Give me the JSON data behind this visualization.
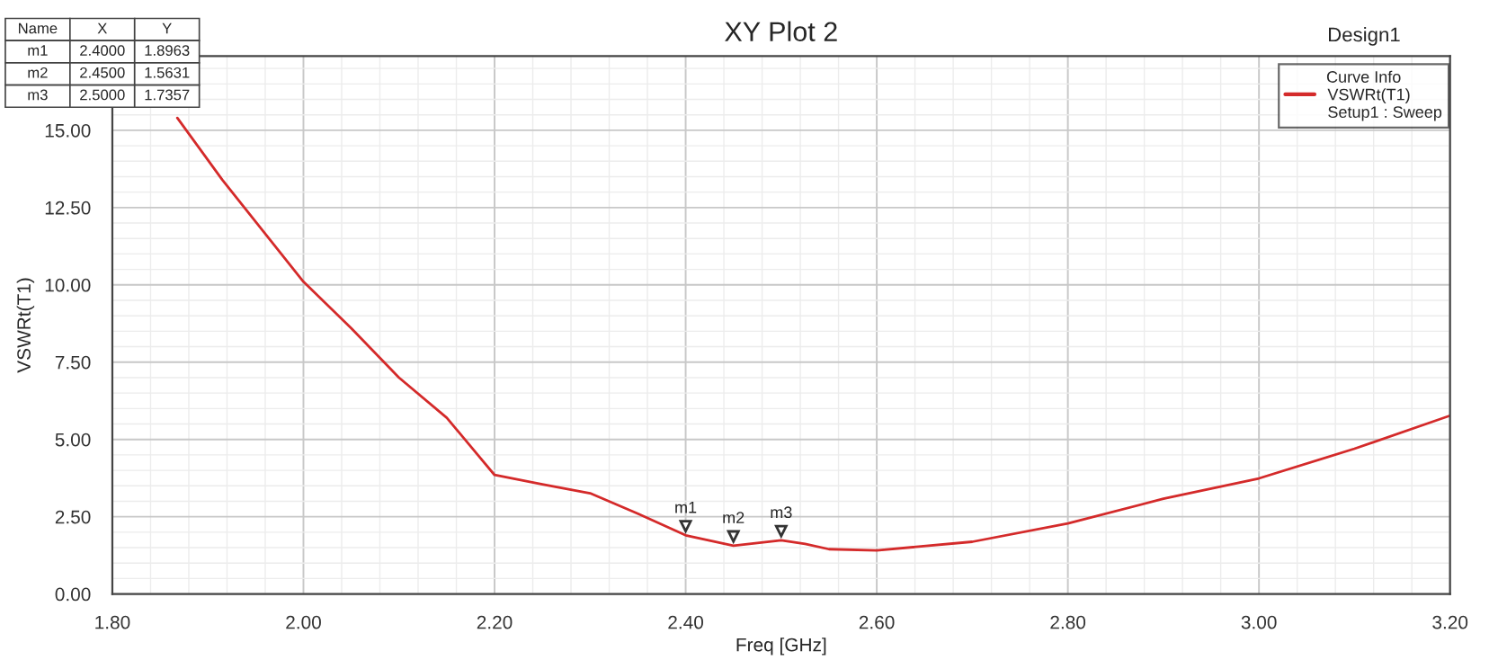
{
  "chart_data": {
    "type": "line",
    "title": "XY Plot 2",
    "xlabel": "Freq [GHz]",
    "ylabel": "VSWRt(T1)",
    "legend_title": "Curve Info",
    "x": [
      1.868,
      1.915,
      2.0,
      2.05,
      2.1,
      2.15,
      2.2,
      2.25,
      2.3,
      2.35,
      2.4,
      2.45,
      2.5,
      2.525,
      2.55,
      2.6,
      2.7,
      2.8,
      2.9,
      3.0,
      3.1,
      3.2
    ],
    "series": [
      {
        "name": "VSWRt(T1)",
        "color": "#d42a2a",
        "values": [
          15.4,
          13.4,
          10.1,
          8.6,
          7.0,
          5.7,
          3.85,
          3.55,
          3.26,
          2.6,
          1.9,
          1.56,
          1.74,
          1.62,
          1.45,
          1.41,
          1.69,
          2.28,
          3.08,
          3.74,
          4.7,
          5.77
        ]
      }
    ],
    "xlim": [
      1.8,
      3.2
    ],
    "xticks": [
      {
        "value": 1.8,
        "label": "1.80"
      },
      {
        "value": 2.0,
        "label": "2.00"
      },
      {
        "value": 2.2,
        "label": "2.20"
      },
      {
        "value": 2.4,
        "label": "2.40"
      },
      {
        "value": 2.6,
        "label": "2.60"
      },
      {
        "value": 2.8,
        "label": "2.80"
      },
      {
        "value": 3.0,
        "label": "3.00"
      },
      {
        "value": 3.2,
        "label": "3.20"
      }
    ],
    "ylim": [
      0,
      17.4
    ],
    "yticks": [
      {
        "value": 0,
        "label": "0.00"
      },
      {
        "value": 2.5,
        "label": "2.50"
      },
      {
        "value": 5,
        "label": "5.00"
      },
      {
        "value": 7.5,
        "label": "7.50"
      },
      {
        "value": 10,
        "label": "10.00"
      },
      {
        "value": 12.5,
        "label": "12.50"
      },
      {
        "value": 15,
        "label": "15.00"
      }
    ],
    "grid": true,
    "legend": "top right",
    "line_style": "solid",
    "marker": "none",
    "annotations": [
      {
        "text": "m1",
        "x": 2.4,
        "y": 1.8963
      },
      {
        "text": "m2",
        "x": 2.45,
        "y": 1.5631
      },
      {
        "text": "m3",
        "x": 2.5,
        "y": 1.7357
      },
      "Name",
      "X",
      "Y",
      "m1",
      "2.4000",
      "1.8963",
      "m2",
      "2.4500",
      "1.5631",
      "m3",
      "2.5000",
      "1.7357",
      "Setup1 : Sweep",
      "Design1"
    ]
  }
}
